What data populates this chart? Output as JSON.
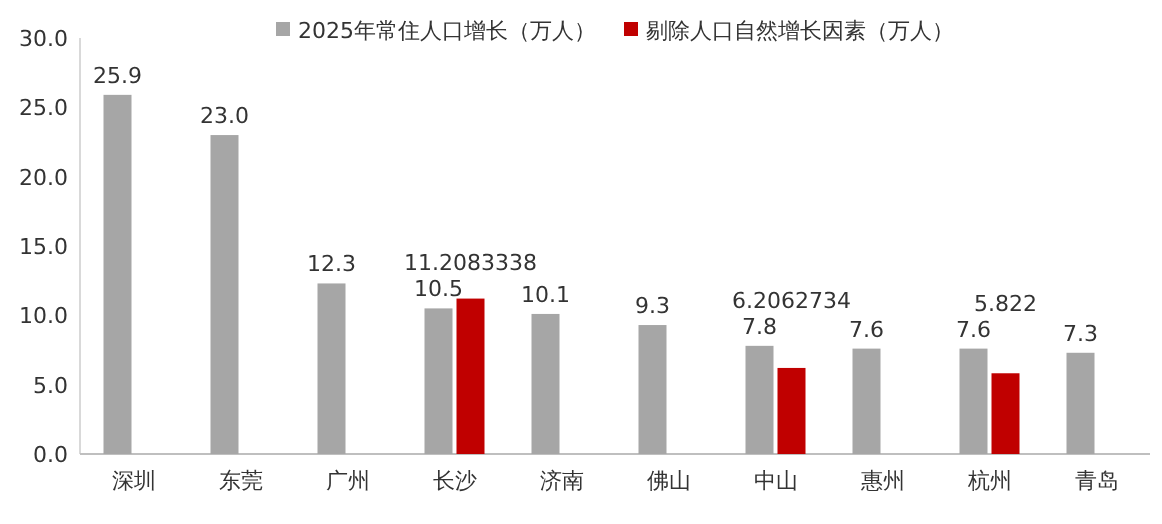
{
  "chart_data": {
    "type": "bar",
    "categories": [
      "深圳",
      "东莞",
      "广州",
      "长沙",
      "济南",
      "佛山",
      "中山",
      "惠州",
      "杭州",
      "青岛"
    ],
    "series": [
      {
        "name": "2025年常住人口增长（万人）",
        "color": "#a6a6a6",
        "values": [
          25.9,
          23.0,
          12.3,
          10.5,
          10.1,
          9.3,
          7.8,
          7.6,
          7.6,
          7.3
        ],
        "value_labels": [
          "25.9",
          "23.0",
          "12.3",
          "10.5",
          "10.1",
          "9.3",
          "7.8",
          "7.6",
          "7.6",
          "7.3"
        ]
      },
      {
        "name": "剔除人口自然增长因素（万人）",
        "color": "#c00000",
        "values": [
          null,
          null,
          null,
          11.2083338,
          null,
          null,
          6.2062734,
          null,
          5.822,
          null
        ],
        "value_labels": [
          null,
          null,
          null,
          "11.2083338",
          null,
          null,
          "6.2062734",
          null,
          "5.822",
          null
        ]
      }
    ],
    "ylim": [
      0,
      30
    ],
    "yticks": [
      {
        "value": 0,
        "label": "0.0"
      },
      {
        "value": 5,
        "label": "5.0"
      },
      {
        "value": 10,
        "label": "10.0"
      },
      {
        "value": 15,
        "label": "15.0"
      },
      {
        "value": 20,
        "label": "20.0"
      },
      {
        "value": 25,
        "label": "25.0"
      },
      {
        "value": 30,
        "label": "30.0"
      }
    ],
    "legend": "top",
    "grid": false
  }
}
